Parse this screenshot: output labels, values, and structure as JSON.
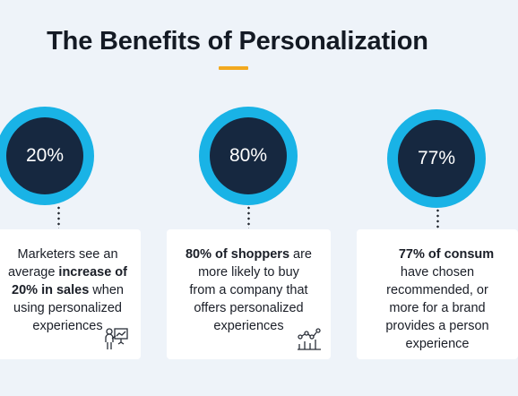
{
  "header": {
    "title": "The Benefits of Personalization"
  },
  "stats": [
    {
      "value": "20%",
      "line1": "Marketers see an",
      "line2a": "average ",
      "line2b": "increase of",
      "line3a": "20% in sales",
      "line3b": " when",
      "line4": "using personalized",
      "line5": "experiences",
      "icon": "presentation-icon"
    },
    {
      "value": "80%",
      "line1a": "80% of shoppers",
      "line1b": " are",
      "line2": "more likely to buy",
      "line3": "from a company that",
      "line4": "offers personalized",
      "line5": "experiences",
      "icon": "line-chart-icon"
    },
    {
      "value": "77%",
      "line1": "77% of consum",
      "line2": "have chosen",
      "line3": "recommended, or",
      "line4": "more for a brand",
      "line5": "provides a person",
      "line6": "experience"
    }
  ],
  "colors": {
    "accent": "#f2a91f",
    "ring": "#19b3e6",
    "circle": "#162840",
    "background": "#eef3f9"
  }
}
